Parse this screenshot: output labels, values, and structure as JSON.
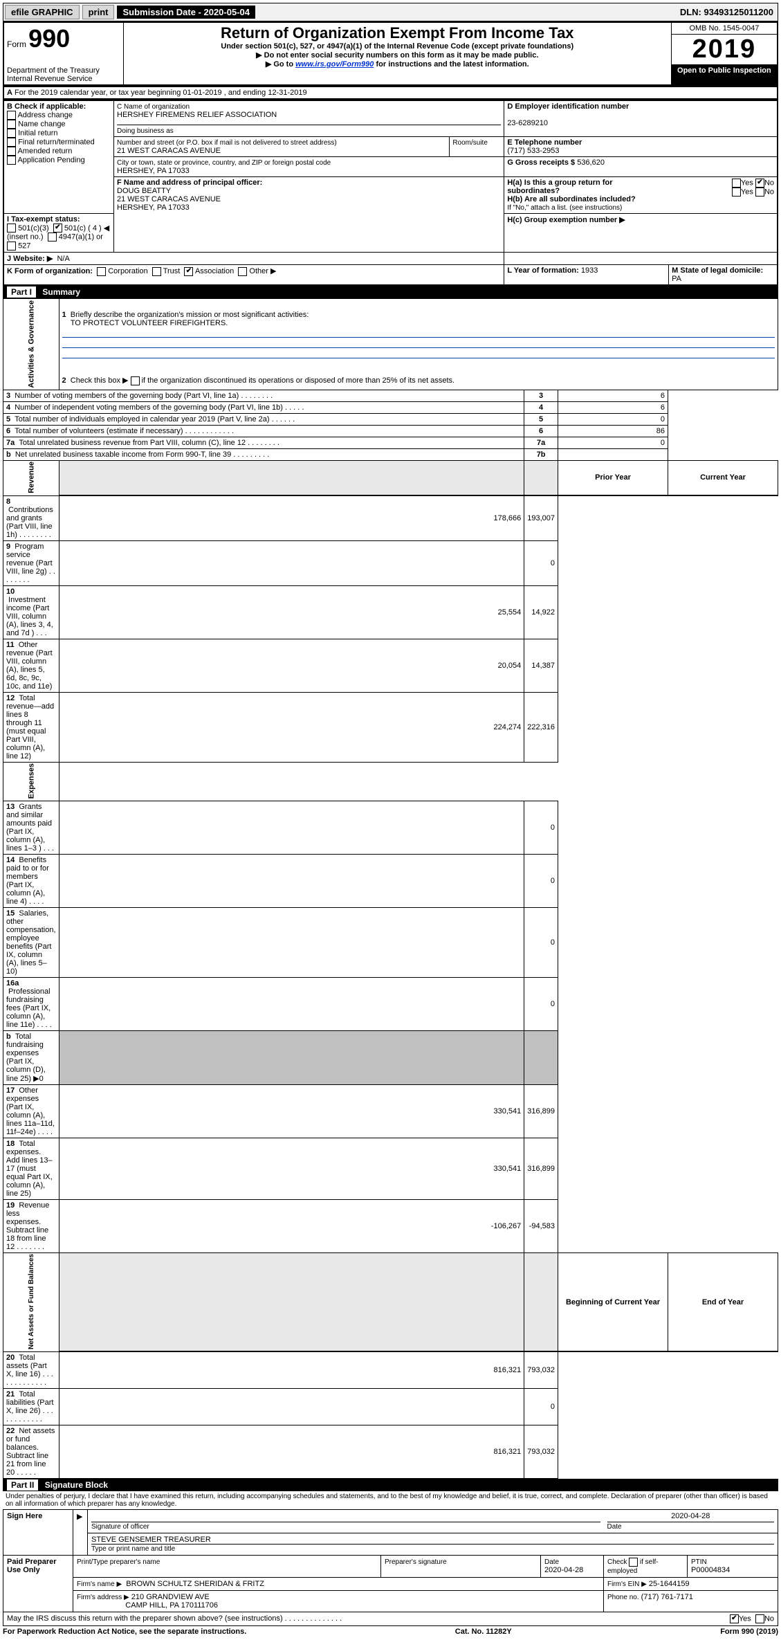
{
  "topbar": {
    "efile": "efile GRAPHIC",
    "print": "print",
    "subdate_label": "Submission Date - 2020-05-04",
    "dln": "DLN: 93493125011200"
  },
  "header": {
    "form_label": "Form",
    "form_number": "990",
    "dept": "Department of the Treasury",
    "irs": "Internal Revenue Service",
    "title": "Return of Organization Exempt From Income Tax",
    "sub1": "Under section 501(c), 527, or 4947(a)(1) of the Internal Revenue Code (except private foundations)",
    "sub2": "Do not enter social security numbers on this form as it may be made public.",
    "sub3_pre": "Go to ",
    "sub3_link": "www.irs.gov/Form990",
    "sub3_post": " for instructions and the latest information.",
    "omb": "OMB No. 1545-0047",
    "year": "2019",
    "open": "Open to Public Inspection"
  },
  "period": {
    "line": "For the 2019 calendar year, or tax year beginning 01-01-2019    , and ending 12-31-2019"
  },
  "boxB": {
    "label": "B Check if applicable:",
    "opts": [
      "Address change",
      "Name change",
      "Initial return",
      "Final return/terminated",
      "Amended return",
      "Application Pending"
    ]
  },
  "boxC": {
    "name_label": "C Name of organization",
    "name": "HERSHEY FIREMENS RELIEF ASSOCIATION",
    "dba_label": "Doing business as",
    "addr_label": "Number and street (or P.O. box if mail is not delivered to street address)",
    "room_label": "Room/suite",
    "addr": "21 WEST CARACAS AVENUE",
    "city_label": "City or town, state or province, country, and ZIP or foreign postal code",
    "city": "HERSHEY, PA  17033"
  },
  "boxD": {
    "label": "D Employer identification number",
    "ein": "23-6289210"
  },
  "boxE": {
    "label": "E Telephone number",
    "phone": "(717) 533-2953"
  },
  "boxF": {
    "label": "F  Name and address of principal officer:",
    "name": "DOUG BEATTY",
    "addr1": "21 WEST CARACAS AVENUE",
    "addr2": "HERSHEY, PA  17033"
  },
  "boxG": {
    "label": "G Gross receipts $",
    "val": "536,620"
  },
  "boxH": {
    "ha": "H(a)  Is this a group return for subordinates?",
    "hb": "H(b)  Are all subordinates included?",
    "hb_note": "If \"No,\" attach a list. (see instructions)",
    "hc": "H(c)  Group exemption number ▶",
    "yes": "Yes",
    "no": "No"
  },
  "boxI": {
    "label": "I    Tax-exempt status:",
    "c3": "501(c)(3)",
    "c": "501(c) ( 4 ) ◀ (insert no.)",
    "a1": "4947(a)(1) or",
    "s527": "527"
  },
  "boxJ": {
    "label": "J    Website: ▶",
    "val": "N/A"
  },
  "boxK": {
    "label": "K Form of organization:",
    "corp": "Corporation",
    "trust": "Trust",
    "assoc": "Association",
    "other": "Other ▶"
  },
  "boxL": {
    "label": "L Year of formation:",
    "val": "1933"
  },
  "boxM": {
    "label": "M State of legal domicile:",
    "val": "PA"
  },
  "part1": {
    "title": "Summary",
    "vert_ag": "Activities & Governance",
    "vert_rev": "Revenue",
    "vert_exp": "Expenses",
    "vert_na": "Net Assets or Fund Balances",
    "q1": "Briefly describe the organization's mission or most significant activities:",
    "q1v": "TO PROTECT VOLUNTEER FIREFIGHTERS.",
    "q2": "Check this box ▶        if the organization discontinued its operations or disposed of more than 25% of its net assets.",
    "rows_ag": [
      {
        "n": "3",
        "t": "Number of voting members of the governing body (Part VI, line 1a)   .    .    .    .    .    .    .    .",
        "r": "3",
        "v": "6"
      },
      {
        "n": "4",
        "t": "Number of independent voting members of the governing body (Part VI, line 1b)   .    .    .    .    .",
        "r": "4",
        "v": "6"
      },
      {
        "n": "5",
        "t": "Total number of individuals employed in calendar year 2019 (Part V, line 2a)   .    .    .    .    .    .",
        "r": "5",
        "v": "0"
      },
      {
        "n": "6",
        "t": "Total number of volunteers (estimate if necessary)   .    .    .    .    .    .    .    .    .    .    .    .",
        "r": "6",
        "v": "86"
      },
      {
        "n": "7a",
        "t": "Total unrelated business revenue from Part VIII, column (C), line 12   .    .    .    .    .    .    .    .",
        "r": "7a",
        "v": "0"
      },
      {
        "n": "b",
        "t": "Net unrelated business taxable income from Form 990-T, line 39   .    .    .    .    .    .    .    .    .",
        "r": "7b",
        "v": ""
      }
    ],
    "col_prior": "Prior Year",
    "col_curr": "Current Year",
    "rows_rev": [
      {
        "n": "8",
        "t": "Contributions and grants (Part VIII, line 1h)   .    .    .    .    .    .    .    .",
        "p": "178,666",
        "c": "193,007"
      },
      {
        "n": "9",
        "t": "Program service revenue (Part VIII, line 2g)   .    .    .    .    .    .    .    .",
        "p": "",
        "c": "0"
      },
      {
        "n": "10",
        "t": "Investment income (Part VIII, column (A), lines 3, 4, and 7d )   .    .    .",
        "p": "25,554",
        "c": "14,922"
      },
      {
        "n": "11",
        "t": "Other revenue (Part VIII, column (A), lines 5, 6d, 8c, 9c, 10c, and 11e)",
        "p": "20,054",
        "c": "14,387"
      },
      {
        "n": "12",
        "t": "Total revenue—add lines 8 through 11 (must equal Part VIII, column (A), line 12)",
        "p": "224,274",
        "c": "222,316"
      }
    ],
    "rows_exp": [
      {
        "n": "13",
        "t": "Grants and similar amounts paid (Part IX, column (A), lines 1–3 )   .    .    .",
        "p": "",
        "c": "0"
      },
      {
        "n": "14",
        "t": "Benefits paid to or for members (Part IX, column (A), line 4)   .    .    .    .",
        "p": "",
        "c": "0"
      },
      {
        "n": "15",
        "t": "Salaries, other compensation, employee benefits (Part IX, column (A), lines 5–10)",
        "p": "",
        "c": "0"
      },
      {
        "n": "16a",
        "t": "Professional fundraising fees (Part IX, column (A), line 11e)   .    .    .    .",
        "p": "",
        "c": "0"
      },
      {
        "n": "b",
        "t": "Total fundraising expenses (Part IX, column (D), line 25) ▶0",
        "p": "__shade__",
        "c": "__shade__"
      },
      {
        "n": "17",
        "t": "Other expenses (Part IX, column (A), lines 11a–11d, 11f–24e)   .    .    .    .",
        "p": "330,541",
        "c": "316,899"
      },
      {
        "n": "18",
        "t": "Total expenses. Add lines 13–17 (must equal Part IX, column (A), line 25)",
        "p": "330,541",
        "c": "316,899"
      },
      {
        "n": "19",
        "t": "Revenue less expenses. Subtract line 18 from line 12   .    .    .    .    .    .    .",
        "p": "-106,267",
        "c": "-94,583"
      }
    ],
    "col_beg": "Beginning of Current Year",
    "col_end": "End of Year",
    "rows_na": [
      {
        "n": "20",
        "t": "Total assets (Part X, line 16)   .    .    .    .    .    .    .    .    .    .    .    .    .",
        "p": "816,321",
        "c": "793,032"
      },
      {
        "n": "21",
        "t": "Total liabilities (Part X, line 26)   .    .    .    .    .    .    .    .    .    .    .    .",
        "p": "",
        "c": "0"
      },
      {
        "n": "22",
        "t": "Net assets or fund balances. Subtract line 21 from line 20   .    .    .    .    .",
        "p": "816,321",
        "c": "793,032"
      }
    ]
  },
  "part2": {
    "title": "Signature Block",
    "decl": "Under penalties of perjury, I declare that I have examined this return, including accompanying schedules and statements, and to the best of my knowledge and belief, it is true, correct, and complete. Declaration of preparer (other than officer) is based on all information of which preparer has any knowledge.",
    "sign_here": "Sign Here",
    "sig_officer_label": "Signature of officer",
    "sig_date": "2020-04-28",
    "date_label": "Date",
    "officer_name": "STEVE GENSEMER  TREASURER",
    "officer_name_label": "Type or print name and title",
    "paid": "Paid Preparer Use Only",
    "prep_name_label": "Print/Type preparer's name",
    "prep_sig_label": "Preparer's signature",
    "prep_date_label": "Date",
    "prep_date": "2020-04-28",
    "check_if": "Check        if self-employed",
    "ptin_label": "PTIN",
    "ptin": "P00004834",
    "firm_name_label": "Firm's name     ▶",
    "firm_name": "BROWN SCHULTZ SHERIDAN & FRITZ",
    "firm_ein_label": "Firm's EIN ▶",
    "firm_ein": "25-1644159",
    "firm_addr_label": "Firm's address ▶",
    "firm_addr1": "210 GRANDVIEW AVE",
    "firm_addr2": "CAMP HILL, PA  170111706",
    "firm_phone_label": "Phone no.",
    "firm_phone": "(717) 761-7171",
    "discuss": "May the IRS discuss this return with the preparer shown above? (see instructions)   .    .    .    .    .    .    .    .    .    .    .    .    .    .",
    "yes": "Yes",
    "no": "No"
  },
  "footer": {
    "pra": "For Paperwork Reduction Act Notice, see the separate instructions.",
    "cat": "Cat. No. 11282Y",
    "form": "Form 990 (2019)"
  }
}
